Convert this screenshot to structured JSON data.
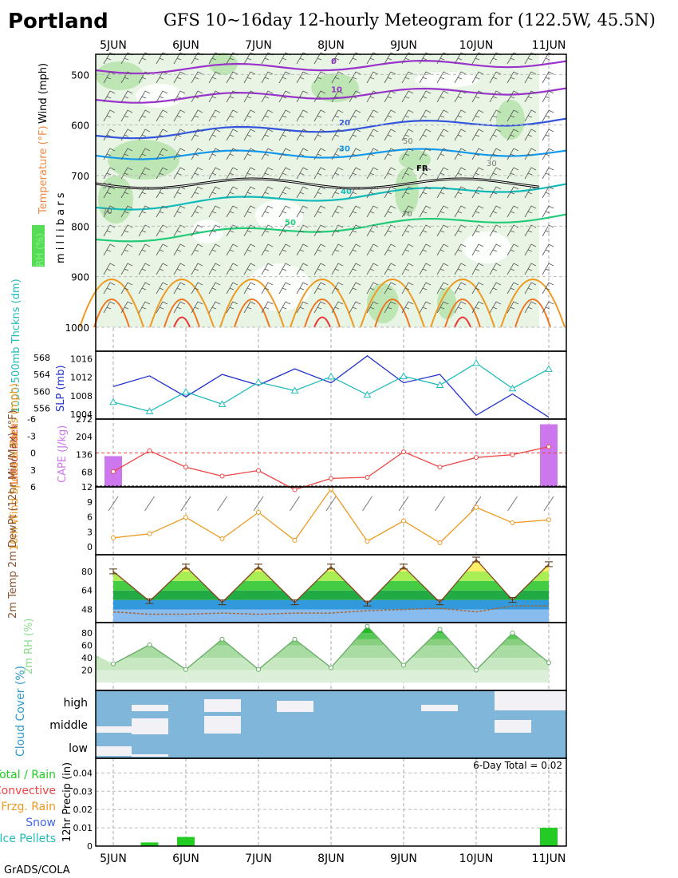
{
  "header": {
    "location": "Portland",
    "title": "GFS 10~16day 12-hourly Meteogram for (122.5W, 45.5N)",
    "credit": "GrADS/COLA"
  },
  "colors": {
    "rh_fill": "#bfe6b8",
    "temp_purple": "#9933cc",
    "temp_blue": "#3355dd",
    "temp_sky": "#1199ee",
    "temp_teal": "#11bbbb",
    "temp_green": "#22cc77",
    "temp_orange": "#ee9922",
    "temp_red": "#ee3333",
    "slp": "#2233cc",
    "thickness": "#22bbbb",
    "cape": "#cc77ee",
    "lifted_index": "#ee4444",
    "wind_speed": "#ee9922",
    "cloud": "#7fb6d9",
    "precip": "#22cc22"
  },
  "chart_data": [
    {
      "type": "heatmap",
      "panel": "upper-air",
      "x_labels": [
        "5JUN",
        "6JUN",
        "7JUN",
        "8JUN",
        "9JUN",
        "10JUN",
        "11JUN"
      ],
      "ylabel": "m i l l i b a r s",
      "side_labels": [
        "Wind (mph)",
        "Temperature (°F)",
        "RH (%)"
      ],
      "y_ticks": [
        500,
        600,
        700,
        800,
        900,
        1000
      ],
      "ylim": [
        460,
        1000
      ],
      "temperature_contour_labels": [
        "0",
        "10",
        "20",
        "30",
        "40",
        "50"
      ],
      "freezing_label": "FR",
      "rh_contour_labels": [
        "90",
        "70",
        "50",
        "30",
        "70"
      ]
    },
    {
      "type": "line",
      "panel": "pressure",
      "ylabel_left": "1000-500mb Thckns (dm)",
      "ylabel_right": "SLP (mb)",
      "x": [
        0,
        0.5,
        1,
        1.5,
        2,
        2.5,
        3,
        3.5,
        4,
        4.5,
        5,
        5.5,
        6
      ],
      "series": [
        {
          "name": "SLP (mb)",
          "values": [
            1010,
            1012.3,
            1007.8,
            1012.6,
            1010.3,
            1013.8,
            1010.8,
            1016.6,
            1010.8,
            1012.6,
            1003.8,
            1008.4,
            1003.4
          ]
        },
        {
          "name": "1000-500mb Thckns (dm)",
          "values": [
            557.5,
            555.3,
            559.9,
            557.0,
            562.2,
            560.2,
            563.5,
            559.2,
            563.6,
            561.5,
            566.7,
            560.7,
            565.3
          ]
        }
      ],
      "ticks_left": [
        556,
        560,
        564,
        568
      ],
      "ticks_right": [
        1004,
        1008,
        1012,
        1016
      ],
      "ylim_left": [
        553.5,
        569.5
      ],
      "ylim_right": [
        1003,
        1017.6
      ]
    },
    {
      "type": "bar",
      "panel": "stability",
      "ylabel_left": "Lifted Index",
      "ylabel_right": "CAPE (J/kg)",
      "x": [
        0,
        0.5,
        1,
        1.5,
        2,
        2.5,
        3,
        3.5,
        4,
        4.5,
        5,
        5.5,
        6
      ],
      "cape": [
        130,
        0,
        10,
        0,
        0,
        0,
        0,
        0,
        13,
        0,
        0,
        0,
        252
      ],
      "lifted_index": [
        3.3,
        -0.4,
        2.5,
        4.1,
        3.1,
        6.5,
        4.5,
        4.3,
        -0.2,
        2.5,
        0.8,
        0.3,
        -1.1
      ],
      "ticks_left": [
        -6,
        -3,
        0,
        3,
        6
      ],
      "ticks_right": [
        12,
        68,
        136,
        204,
        272
      ],
      "ylim_left": [
        6,
        -6
      ],
      "ylim_right": [
        12,
        272
      ]
    },
    {
      "type": "line",
      "panel": "wind",
      "ylabel": "10m Wind Speed & Barbs (mph)",
      "x": [
        0,
        0.5,
        1,
        1.5,
        2,
        2.5,
        3,
        3.5,
        4,
        4.5,
        5,
        5.5,
        6
      ],
      "values": [
        1.8,
        2.6,
        5.9,
        1.6,
        6.9,
        1.3,
        11.6,
        1.1,
        5.2,
        0.8,
        7.9,
        4.8,
        5.4
      ],
      "ticks": [
        0,
        3,
        6,
        9
      ],
      "ylim": [
        0,
        12
      ]
    },
    {
      "type": "area",
      "panel": "temperature",
      "ylabel": "2m Temp 2m DewPt (12hr Min/Max) (°F)",
      "x": [
        0,
        0.5,
        1,
        1.5,
        2,
        2.5,
        3,
        3.5,
        4,
        4.5,
        5,
        5.5,
        6
      ],
      "temp": [
        80,
        55,
        84,
        54,
        84,
        54,
        84,
        53,
        84,
        54,
        90,
        56,
        86
      ],
      "dewpoint": [
        46,
        44,
        44,
        45,
        44,
        45,
        45,
        47,
        48,
        49,
        46,
        51,
        51
      ],
      "ticks": [
        48,
        64,
        80
      ],
      "ylim": [
        37,
        94
      ]
    },
    {
      "type": "area",
      "panel": "relative-humidity",
      "ylabel": "2m RH (%)",
      "x": [
        0,
        0.5,
        1,
        1.5,
        2,
        2.5,
        3,
        3.5,
        4,
        4.5,
        5,
        5.5,
        6
      ],
      "values": [
        30,
        61,
        21,
        70,
        21,
        70,
        24,
        91,
        28,
        86,
        20,
        80,
        32
      ],
      "ticks": [
        20,
        40,
        60,
        80
      ],
      "ylim": [
        0,
        97
      ]
    },
    {
      "type": "bar",
      "panel": "cloud-cover",
      "ylabel": "Cloud Cover (%)",
      "levels": [
        "high",
        "middle",
        "low"
      ]
    },
    {
      "type": "bar",
      "panel": "precipitation",
      "ylabel": "12hr Precip (in)",
      "legend": [
        "Total / Rain",
        "Convective",
        "Frzg. Rain",
        "Snow",
        "Ice Pellets"
      ],
      "total_text": "6-Day Total = 0.02",
      "x": [
        0,
        0.5,
        1,
        1.5,
        2,
        2.5,
        3,
        3.5,
        4,
        4.5,
        5,
        5.5,
        6
      ],
      "values": [
        0,
        0.002,
        0.005,
        0,
        0,
        0,
        0,
        0,
        0,
        0,
        0,
        0,
        0.01
      ],
      "ticks": [
        0,
        0.01,
        0.02,
        0.03,
        0.04
      ],
      "ylim": [
        0,
        0.048
      ]
    }
  ]
}
